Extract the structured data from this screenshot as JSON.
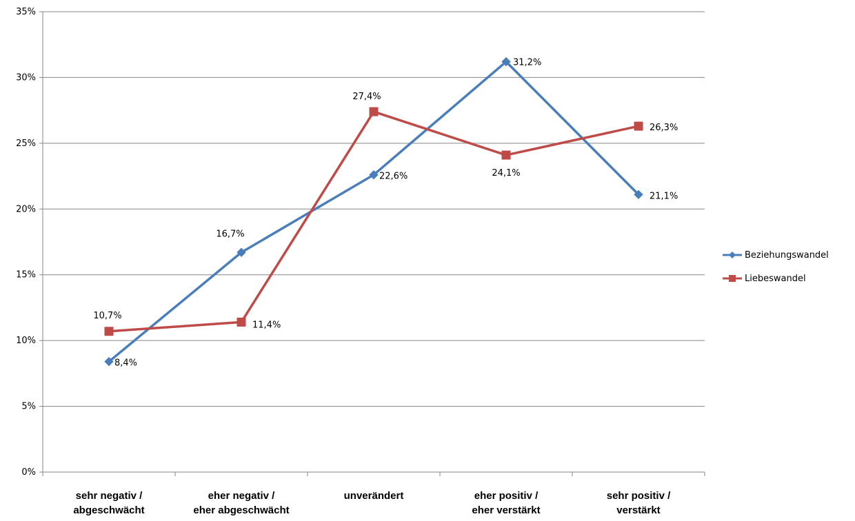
{
  "chart_data": {
    "type": "line",
    "categories": [
      [
        "sehr negativ /",
        "abgeschwächt"
      ],
      [
        "eher negativ /",
        "eher abgeschwächt"
      ],
      [
        "unverändert"
      ],
      [
        "eher positiv /",
        "eher verstärkt"
      ],
      [
        "sehr positiv /",
        "verstärkt"
      ]
    ],
    "y_ticks": [
      "0%",
      "5%",
      "10%",
      "15%",
      "20%",
      "25%",
      "30%",
      "35%"
    ],
    "ylim": [
      0,
      35
    ],
    "grid": true,
    "legend_position": "right",
    "series": [
      {
        "name": "Beziehungswandel",
        "marker": "diamond",
        "color": "#4a7ebb",
        "values": [
          8.4,
          16.7,
          22.6,
          31.2,
          21.1
        ],
        "labels": [
          "8,4%",
          "16,7%",
          "22,6%",
          "31,2%",
          "21,1%"
        ]
      },
      {
        "name": "Liebeswandel",
        "marker": "square",
        "color": "#be4b48",
        "values": [
          10.7,
          11.4,
          27.4,
          24.1,
          26.3
        ],
        "labels": [
          "10,7%",
          "11,4%",
          "27,4%",
          "24,1%",
          "26,3%"
        ]
      }
    ]
  }
}
